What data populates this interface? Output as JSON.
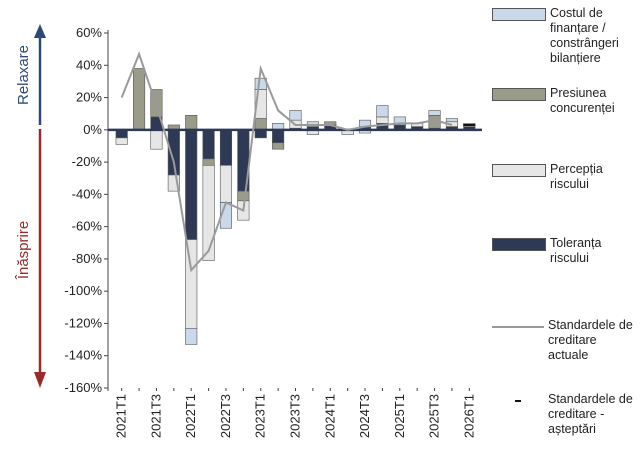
{
  "chart_data": {
    "type": "bar",
    "stacked": true,
    "y_labels": {
      "up": "Relaxare",
      "down": "Înăsprire"
    },
    "categories": [
      "2021T1",
      null,
      "2021T3",
      null,
      "2022T1",
      null,
      "2022T3",
      null,
      "2023T1",
      null,
      "2023T3",
      null,
      "2024T1",
      null,
      "2024T3",
      null,
      "2025T1",
      null,
      "2025T3",
      null,
      "2026T1"
    ],
    "ylim": [
      -160,
      60
    ],
    "yticks": [
      {
        "value": 60,
        "label": "60%"
      },
      {
        "value": 40,
        "label": "40%"
      },
      {
        "value": 20,
        "label": "20%"
      },
      {
        "value": 0,
        "label": "0%"
      },
      {
        "value": -20,
        "label": "-20%"
      },
      {
        "value": -40,
        "label": "-40%"
      },
      {
        "value": -60,
        "label": "-60%"
      },
      {
        "value": -80,
        "label": "-80%"
      },
      {
        "value": -100,
        "label": "-100%"
      },
      {
        "value": -120,
        "label": "-120%"
      },
      {
        "value": -140,
        "label": "-140%"
      },
      {
        "value": -160,
        "label": "-160%"
      }
    ],
    "series": [
      {
        "name": "Toleranța riscului",
        "kind": "bar",
        "color": "#2e3a55",
        "values": [
          -5,
          0,
          8,
          -28,
          -68,
          -18,
          -22,
          -38,
          -5,
          -8,
          1,
          2,
          3,
          0,
          2,
          4,
          3,
          2,
          1,
          2,
          2
        ]
      },
      {
        "name": "Presiunea concurenței",
        "kind": "bar",
        "color": "#9b9b8a",
        "values": [
          0,
          38,
          17,
          3,
          9,
          -4,
          0,
          -6,
          7,
          -4,
          0,
          0,
          2,
          0,
          0,
          0,
          0,
          0,
          8,
          0,
          0
        ]
      },
      {
        "name": "Percepția riscului",
        "kind": "bar",
        "color": "#e6e6e6",
        "values": [
          -4,
          0,
          -12,
          -10,
          -55,
          -59,
          -23,
          -12,
          18,
          0,
          5,
          -3,
          0,
          -3,
          -2,
          4,
          0,
          2,
          0,
          3,
          2
        ]
      },
      {
        "name": "Costul de finanțare / constrângeri bilanțiere",
        "kind": "bar",
        "color": "#c9d9ea",
        "values": [
          0,
          0,
          0,
          0,
          -10,
          0,
          -16,
          0,
          7,
          4,
          6,
          3,
          0,
          0,
          4,
          7,
          5,
          0,
          3,
          2,
          0
        ]
      },
      {
        "name": "Standardele de creditare actuale",
        "kind": "line",
        "color": "#9a9a9a",
        "values": [
          20,
          47,
          15,
          -20,
          -87,
          -75,
          -45,
          -50,
          38,
          12,
          3,
          3,
          3,
          0,
          2,
          3,
          4,
          4,
          6,
          3,
          null
        ]
      },
      {
        "name": "Standardele de creditare - așteptări",
        "kind": "marker",
        "color": "#111111",
        "values": [
          null,
          null,
          null,
          null,
          null,
          null,
          null,
          null,
          null,
          null,
          null,
          null,
          null,
          null,
          null,
          null,
          null,
          null,
          null,
          null,
          3
        ]
      }
    ]
  }
}
